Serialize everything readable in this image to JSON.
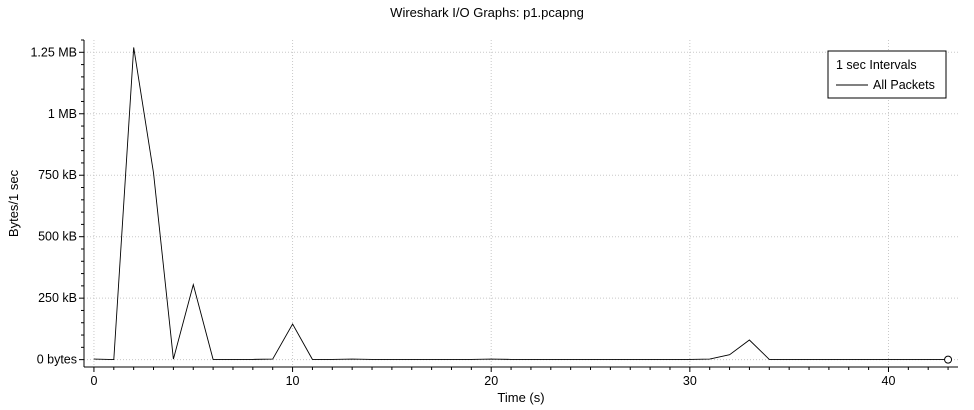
{
  "window_title": "Wireshark I/O Graphs: p1.pcapng",
  "chart_data": {
    "type": "line",
    "title": "Wireshark I/O Graphs: p1.pcapng",
    "xlabel": "Time (s)",
    "ylabel": "Bytes/1 sec",
    "xlim": [
      -0.5,
      43.5
    ],
    "ylim": [
      -30000,
      1300000
    ],
    "x_ticks": [
      0,
      10,
      20,
      30,
      40
    ],
    "x_tick_labels": [
      "0",
      "10",
      "20",
      "30",
      "40"
    ],
    "y_ticks": [
      0,
      250000,
      500000,
      750000,
      1000000,
      1250000
    ],
    "y_tick_labels": [
      "0 bytes",
      "250 kB",
      "500 kB",
      "750 kB",
      "1 MB",
      "1.25 MB"
    ],
    "grid": true,
    "legend": {
      "placement": "top-right",
      "title": "1 sec Intervals"
    },
    "series": [
      {
        "name": "All Packets",
        "color": "#000000",
        "x": [
          0,
          1,
          2,
          3,
          4,
          5,
          6,
          7,
          8,
          9,
          10,
          11,
          12,
          13,
          14,
          15,
          16,
          17,
          18,
          19,
          20,
          21,
          22,
          23,
          24,
          25,
          26,
          27,
          28,
          29,
          30,
          31,
          32,
          33,
          34,
          35,
          36,
          37,
          38,
          39,
          40,
          41,
          42,
          43
        ],
        "y": [
          2000,
          0,
          1270000,
          760000,
          2000,
          305000,
          1000,
          1000,
          1000,
          2000,
          145000,
          1000,
          1000,
          2000,
          1000,
          1000,
          1000,
          1000,
          1000,
          1000,
          2000,
          1000,
          1000,
          1000,
          1000,
          1000,
          1000,
          1000,
          1000,
          1000,
          1000,
          2000,
          20000,
          80000,
          1000,
          1000,
          1000,
          1000,
          1000,
          1000,
          1000,
          1000,
          1000,
          0
        ]
      }
    ]
  }
}
